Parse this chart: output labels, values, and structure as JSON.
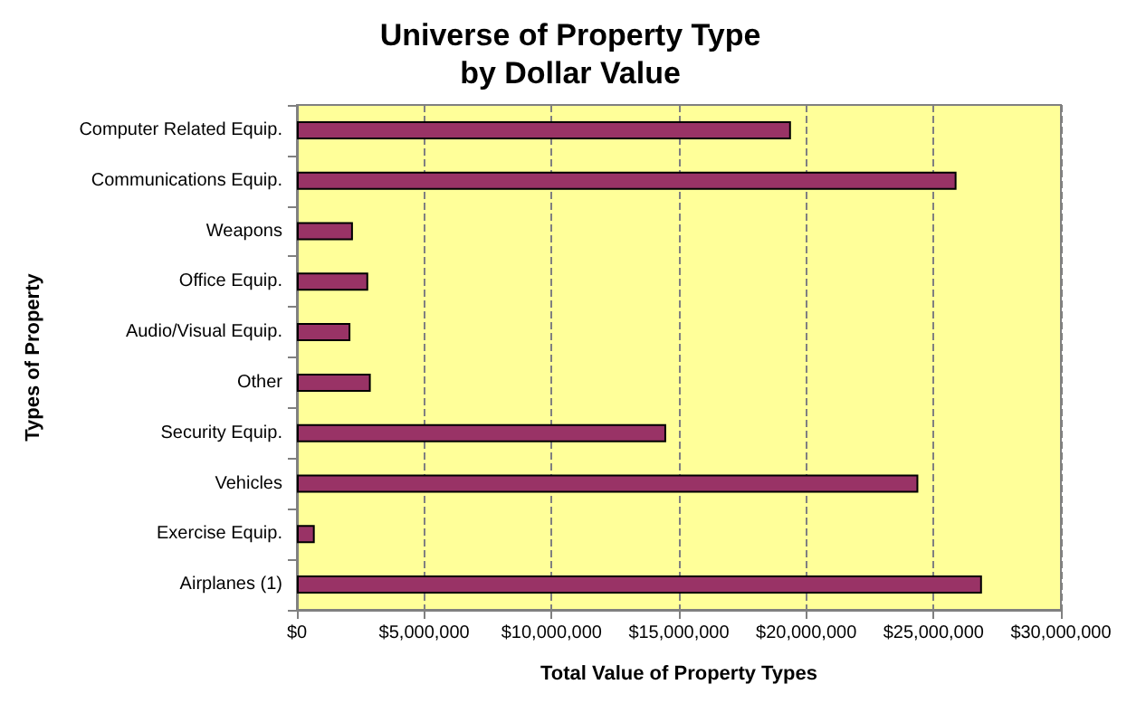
{
  "chart_data": {
    "type": "bar",
    "orientation": "horizontal",
    "title": "Universe of Property Type\nby Dollar Value",
    "xlabel": "Total Value of Property Types",
    "ylabel": "Types of Property",
    "categories": [
      "Computer Related Equip.",
      "Communications Equip.",
      "Weapons",
      "Office Equip.",
      "Audio/Visual Equip.",
      "Other",
      "Security Equip.",
      "Vehicles",
      "Exercise Equip.",
      "Airplanes (1)"
    ],
    "values": [
      19400000,
      25900000,
      2200000,
      2800000,
      2100000,
      2900000,
      14500000,
      24400000,
      700000,
      26900000
    ],
    "color": "#993366",
    "xlim": [
      0,
      30000000
    ],
    "xticks": [
      {
        "value": 0,
        "label": "$0"
      },
      {
        "value": 5000000,
        "label": "$5,000,000"
      },
      {
        "value": 10000000,
        "label": "$10,000,000"
      },
      {
        "value": 15000000,
        "label": "$15,000,000"
      },
      {
        "value": 20000000,
        "label": "$20,000,000"
      },
      {
        "value": 25000000,
        "label": "$25,000,000"
      },
      {
        "value": 30000000,
        "label": "$30,000,000"
      }
    ],
    "grid": "x"
  }
}
